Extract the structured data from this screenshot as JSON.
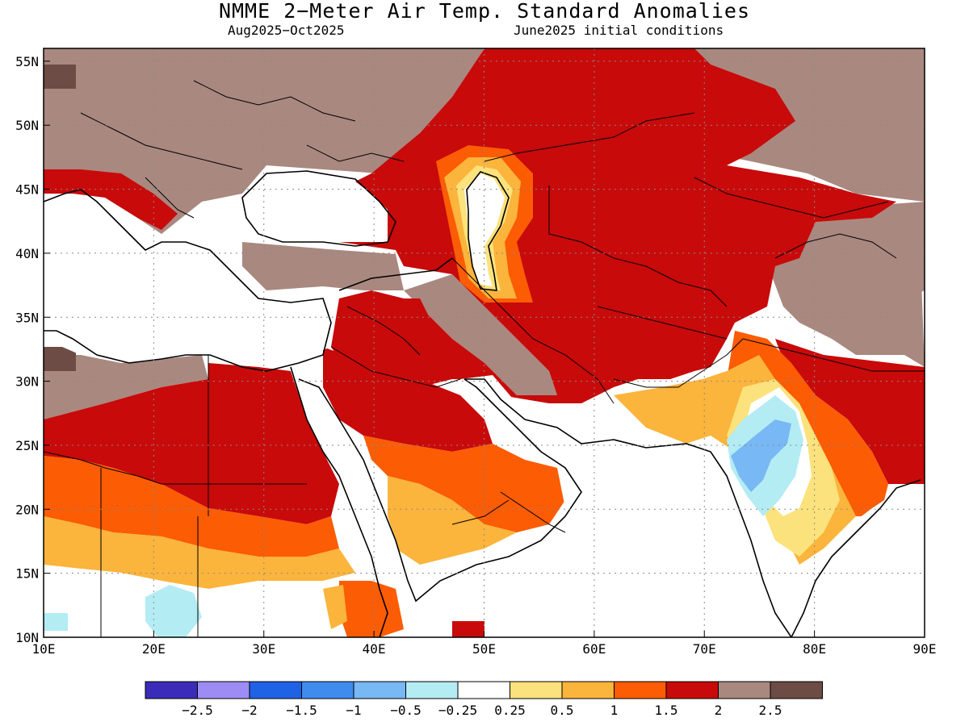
{
  "title": "NMME 2−Meter Air Temp. Standard Anomalies",
  "subtitle_left": "Aug2025−Oct2025",
  "subtitle_right": "June2025 initial conditions",
  "map": {
    "lon_range": [
      10,
      90
    ],
    "lat_range": [
      10,
      56
    ],
    "lon_ticks": [
      "10E",
      "20E",
      "30E",
      "40E",
      "50E",
      "60E",
      "70E",
      "80E",
      "90E"
    ],
    "lat_ticks": [
      "10N",
      "15N",
      "20N",
      "25N",
      "30N",
      "35N",
      "40N",
      "45N",
      "50N",
      "55N"
    ],
    "grid": "dotted"
  },
  "legend": {
    "labels": [
      "−2.5",
      "−2",
      "−1.5",
      "−1",
      "−0.5",
      "−0.25",
      "0.25",
      "0.5",
      "1",
      "1.5",
      "2",
      "2.5"
    ],
    "colors": [
      "#3a2cb8",
      "#9c8cf4",
      "#1f62e6",
      "#3f8cee",
      "#78b8f4",
      "#b4ecf4",
      "#ffffff",
      "#fce27c",
      "#fbb43c",
      "#fb5c04",
      "#c80a0a",
      "#a98880",
      "#6c4c44"
    ]
  },
  "anomaly_colors": {
    "brown": "#a98880",
    "dark_brown": "#6c4c44",
    "dark_red": "#c80a0a",
    "orange": "#fb5c04",
    "light_orange": "#fbb43c",
    "yellow": "#fce27c",
    "light_blue": "#b4ecf4",
    "blue": "#78b8f4"
  }
}
